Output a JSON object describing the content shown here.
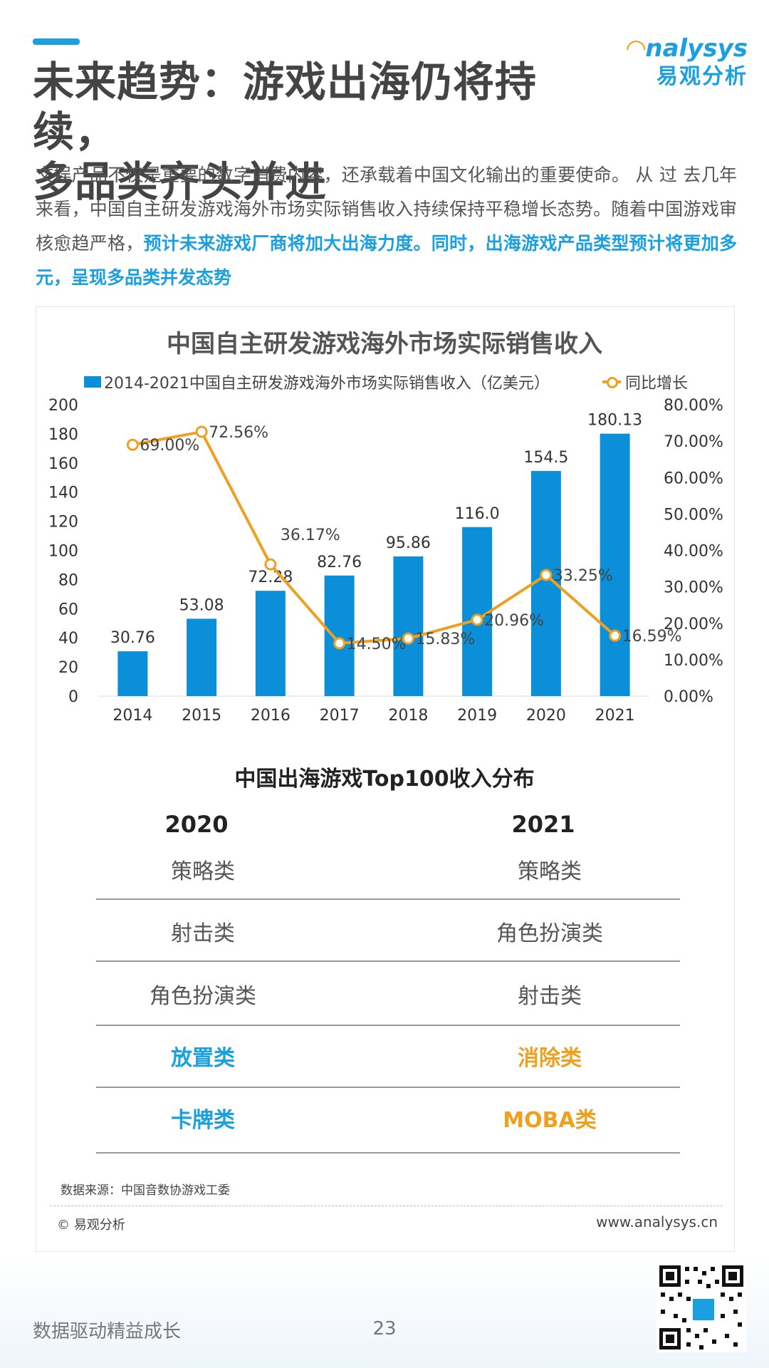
{
  "header": {
    "title_line1": "未来趋势：游戏出海仍将持续，",
    "title_line2": "多品类齐头并进",
    "logo_en": "nalysys",
    "logo_cn": "易观分析"
  },
  "intro": {
    "plain": "文娱产品不仅是重要的数字消费内容，还承载着中国文化输出的重要使命。 从 过 去几年来看，中国自主研发游戏海外市场实际销售收入持续保持平稳增长态势。随着中国游戏审核愈趋严格，",
    "highlight": "预计未来游戏厂商将加大出海力度。同时，出海游戏产品类型预计将更加多元，呈现多品类并发态势"
  },
  "chart_data": {
    "type": "bar",
    "title": "中国自主研发游戏海外市场实际销售收入",
    "categories": [
      "2014",
      "2015",
      "2016",
      "2017",
      "2018",
      "2019",
      "2020",
      "2021"
    ],
    "series": [
      {
        "name": "2014-2021中国自主研发游戏海外市场实际销售收入（亿美元）",
        "type": "bar",
        "axis": "left",
        "values": [
          30.76,
          53.08,
          72.28,
          82.76,
          95.86,
          116.0,
          154.5,
          180.13
        ],
        "labels": [
          "30.76",
          "53.08",
          "72.28",
          "82.76",
          "95.86",
          "116.0",
          "154.5",
          "180.13"
        ],
        "color": "#0b8fd9"
      },
      {
        "name": "同比增长",
        "type": "line",
        "axis": "right",
        "values": [
          69.0,
          72.56,
          36.17,
          14.5,
          15.83,
          20.96,
          33.25,
          16.59
        ],
        "labels": [
          "69.00%",
          "72.56%",
          "36.17%",
          "14.50%",
          "15.83%",
          "20.96%",
          "33.25%",
          "16.59%"
        ],
        "color": "#f0a020"
      }
    ],
    "ylim_left": [
      0,
      200
    ],
    "yticks_left": [
      "0",
      "20",
      "40",
      "60",
      "80",
      "100",
      "120",
      "140",
      "160",
      "180",
      "200"
    ],
    "ylim_right": [
      0,
      80
    ],
    "yticks_right": [
      "0.00%",
      "10.00%",
      "20.00%",
      "30.00%",
      "40.00%",
      "50.00%",
      "60.00%",
      "70.00%",
      "80.00%"
    ],
    "legend": "top"
  },
  "table": {
    "title": "中国出海游戏Top100收入分布",
    "col1_header": "2020",
    "col2_header": "2021",
    "rows": [
      {
        "c1": "策略类",
        "c2": "策略类"
      },
      {
        "c1": "射击类",
        "c2": "角色扮演类"
      },
      {
        "c1": "角色扮演类",
        "c2": "射击类"
      },
      {
        "c1": "放置类",
        "c2": "消除类"
      },
      {
        "c1": "卡牌类",
        "c2": "MOBA类"
      }
    ]
  },
  "footer": {
    "source": "数据来源：中国音数协游戏工委",
    "copyright": "© 易观分析",
    "website": "www.analysys.cn",
    "slogan": "数据驱动精益成长",
    "page_number": "23"
  },
  "colors": {
    "accent_blue": "#1a9fe0",
    "bar_blue": "#0b8fd9",
    "line_orange": "#f0a020"
  }
}
